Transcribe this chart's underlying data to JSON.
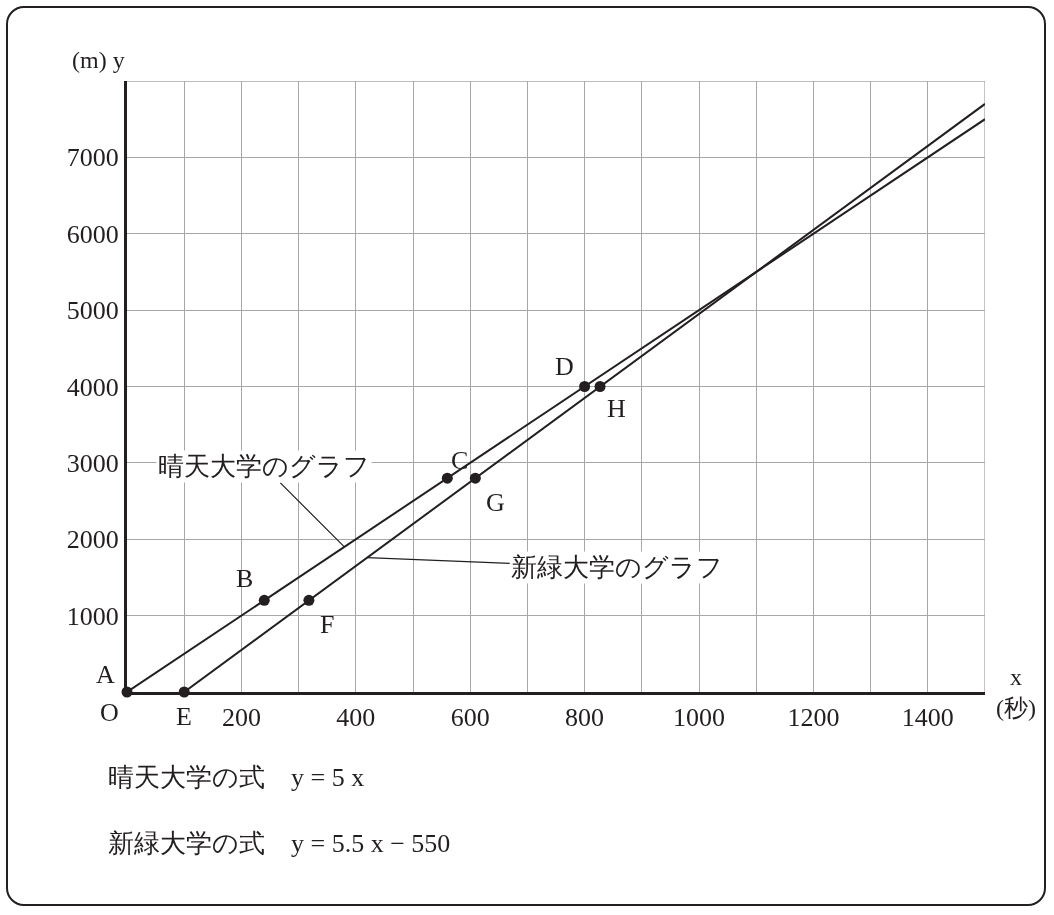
{
  "chart_data": {
    "type": "line",
    "xlabel": "x\n(秒)",
    "ylabel": "(m) y",
    "series": [
      {
        "x": [
          0,
          1500
        ],
        "values": [
          0,
          7500
        ],
        "color": "#231f20"
      },
      {
        "x": [
          100,
          1500
        ],
        "values": [
          0,
          7700
        ],
        "color": "#231f20"
      },
      {
        "type": "scatter",
        "x": [
          0,
          240,
          560,
          800,
          100,
          318,
          609,
          827
        ],
        "values": [
          0,
          1200,
          2800,
          4000,
          0,
          1200,
          2800,
          4000
        ],
        "color": "#231f20",
        "marker": "circle"
      }
    ],
    "xlim": [
      0,
      1500
    ],
    "ylim": [
      0,
      8000
    ],
    "xticks": [
      {
        "value": 100,
        "label": null
      },
      200,
      {
        "value": 300,
        "label": null
      },
      400,
      {
        "value": 500,
        "label": null
      },
      600,
      {
        "value": 700,
        "label": null
      },
      800,
      {
        "value": 900,
        "label": null
      },
      1000,
      {
        "value": 1100,
        "label": null
      },
      1200,
      {
        "value": 1300,
        "label": null
      },
      1400,
      {
        "value": 1500,
        "label": null
      }
    ],
    "yticks": [
      1000,
      2000,
      3000,
      4000,
      5000,
      6000,
      7000,
      {
        "value": 8000,
        "label": null
      }
    ],
    "grid": true,
    "line_style": "solid",
    "annotations": [
      {
        "text": "A",
        "x": 0,
        "y": 0
      },
      {
        "text": "O",
        "x": 0,
        "y": 0
      },
      {
        "text": "B",
        "x": 240,
        "y": 1200
      },
      {
        "text": "C",
        "x": 560,
        "y": 2800
      },
      {
        "text": "D",
        "x": 800,
        "y": 4000
      },
      {
        "text": "E",
        "x": 100,
        "y": 0
      },
      {
        "text": "F",
        "x": 318,
        "y": 1200
      },
      {
        "text": "G",
        "x": 609,
        "y": 2800
      },
      {
        "text": "H",
        "x": 827,
        "y": 4000
      },
      {
        "text": "晴天大学のグラフ",
        "x": 380,
        "y": 1900
      },
      {
        "text": "新緑大学のグラフ",
        "x": 420,
        "y": 1760
      },
      "晴天大学の式　y = 5 x",
      "新緑大学の式　y = 5.5 x − 550"
    ]
  }
}
